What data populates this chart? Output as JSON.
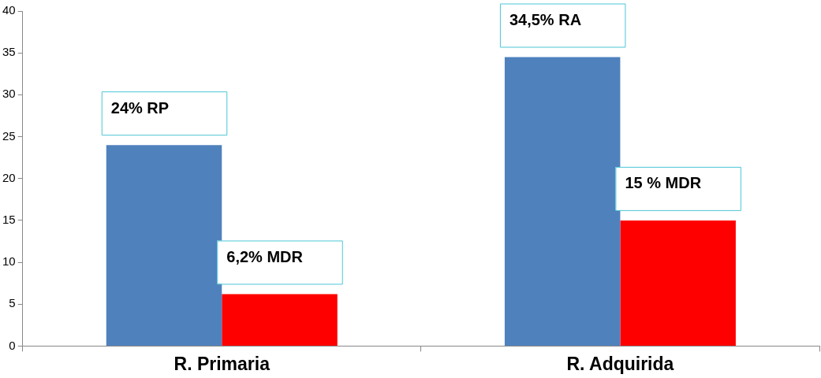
{
  "chart_data": {
    "type": "bar",
    "categories": [
      "R. Primaria",
      "R. Adquirida"
    ],
    "series": [
      {
        "color": "#4f81bd",
        "values": [
          24,
          34.5
        ],
        "value_labels": [
          "24% RP",
          "34,5% RA"
        ]
      },
      {
        "color": "#ff0000",
        "values": [
          6.2,
          15
        ],
        "value_labels": [
          "6,2% MDR",
          "15 % MDR"
        ]
      }
    ],
    "ylim": [
      0,
      40
    ],
    "yticks": [
      0,
      5,
      10,
      15,
      20,
      25,
      30,
      35,
      40
    ],
    "grid": false,
    "legend": false
  }
}
